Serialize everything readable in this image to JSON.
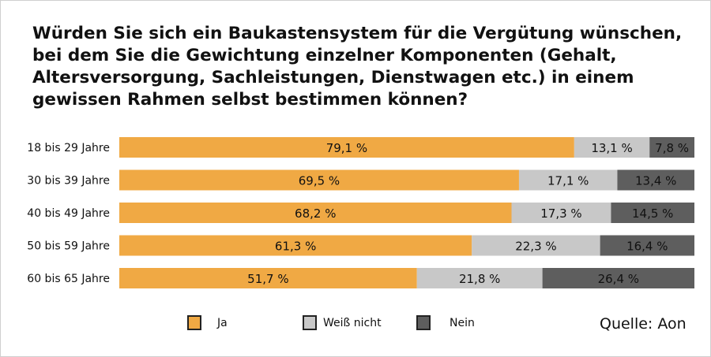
{
  "chart_data": {
    "type": "bar",
    "orientation": "horizontal",
    "stacked": true,
    "title": "Würden Sie sich ein Baukastensystem für die Vergütung wünschen, bei dem Sie die Gewichtung einzelner Komponenten (Gehalt, Altersversorgung, Sachleistungen, Dienstwagen etc.) in einem gewissen Rahmen selbst bestimmen können?",
    "categories": [
      "18 bis 29 Jahre",
      "30 bis 39 Jahre",
      "40 bis 49 Jahre",
      "50 bis 59 Jahre",
      "60 bis 65 Jahre"
    ],
    "series": [
      {
        "name": "Ja",
        "color": "#f0a944",
        "values": [
          79.1,
          69.5,
          68.2,
          61.3,
          51.7
        ],
        "labels": [
          "79,1 %",
          "69,5 %",
          "68,2 %",
          "61,3 %",
          "51,7 %"
        ]
      },
      {
        "name": "Weiß nicht",
        "color": "#c8c8c8",
        "values": [
          13.1,
          17.1,
          17.3,
          22.3,
          21.8
        ],
        "labels": [
          "13,1 %",
          "17,1 %",
          "17,3 %",
          "22,3 %",
          "21,8 %"
        ]
      },
      {
        "name": "Nein",
        "color": "#5e5e5e",
        "values": [
          7.8,
          13.4,
          14.5,
          16.4,
          26.4
        ],
        "labels": [
          "7,8 %",
          "13,4 %",
          "14,5 %",
          "16,4 %",
          "26,4 %"
        ]
      }
    ],
    "xlim": [
      0,
      100
    ],
    "grid": false,
    "legend": "bottom",
    "source": "Quelle: Aon"
  }
}
